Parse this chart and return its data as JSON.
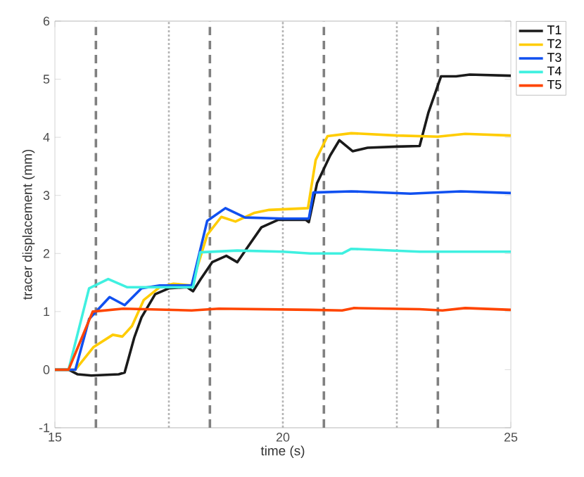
{
  "chart_data": {
    "type": "line",
    "xlabel": "time (s)",
    "ylabel": "tracer displacement (mm)",
    "xlim": [
      15,
      25
    ],
    "ylim": [
      -1,
      6
    ],
    "xticks": [
      15,
      20,
      25
    ],
    "yticks": [
      -1,
      0,
      1,
      2,
      3,
      4,
      5,
      6
    ],
    "grid": false,
    "legend": "top right",
    "marker": "none",
    "line_style": "solid",
    "ref_lines": [
      {
        "axis": "x",
        "value": 15.9,
        "color": "#808080",
        "line_style": "dashed"
      },
      {
        "axis": "x",
        "value": 17.5,
        "color": "#b4b4b4",
        "line_style": "dotted"
      },
      {
        "axis": "x",
        "value": 18.4,
        "color": "#808080",
        "line_style": "dashed"
      },
      {
        "axis": "x",
        "value": 20,
        "color": "#b4b4b4",
        "line_style": "dotted"
      },
      {
        "axis": "x",
        "value": 20.9,
        "color": "#808080",
        "line_style": "dashed"
      },
      {
        "axis": "x",
        "value": 22.5,
        "color": "#b4b4b4",
        "line_style": "dotted"
      },
      {
        "axis": "x",
        "value": 23.4,
        "color": "#808080",
        "line_style": "dashed"
      }
    ],
    "series": [
      {
        "name": "T1",
        "color": "#1a1a1a",
        "x": [
          15,
          15.3,
          15.5,
          15.8,
          16.4,
          16.53,
          16.74,
          16.9,
          17.2,
          17.5,
          17.9,
          18.03,
          18.19,
          18.45,
          18.76,
          19.0,
          19.22,
          19.53,
          19.9,
          20.5,
          20.57,
          20.75,
          21.04,
          21.24,
          21.53,
          21.86,
          22.5,
          23.0,
          23.19,
          23.47,
          23.8,
          24.1,
          25
        ],
        "values": [
          0,
          0,
          -0.08,
          -0.1,
          -0.08,
          -0.05,
          0.55,
          0.9,
          1.3,
          1.4,
          1.42,
          1.35,
          1.55,
          1.85,
          1.96,
          1.85,
          2.1,
          2.45,
          2.58,
          2.58,
          2.54,
          3.21,
          3.69,
          3.95,
          3.76,
          3.82,
          3.84,
          3.85,
          4.42,
          5.05,
          5.05,
          5.08,
          5.06
        ]
      },
      {
        "name": "T2",
        "color": "#ffcc00",
        "x": [
          15,
          15.45,
          15.85,
          16.27,
          16.48,
          16.69,
          16.95,
          17.3,
          17.6,
          18.0,
          18.34,
          18.65,
          18.96,
          19.38,
          19.7,
          20.55,
          20.72,
          20.98,
          21.5,
          22.5,
          23.4,
          24.0,
          25
        ],
        "values": [
          0,
          0,
          0.39,
          0.6,
          0.57,
          0.75,
          1.2,
          1.42,
          1.48,
          1.45,
          2.32,
          2.63,
          2.55,
          2.7,
          2.75,
          2.78,
          3.61,
          4.02,
          4.07,
          4.03,
          4.01,
          4.06,
          4.03
        ]
      },
      {
        "name": "T3",
        "color": "#1050f0",
        "x": [
          15,
          15.45,
          15.75,
          16.2,
          16.53,
          16.9,
          17.3,
          18.0,
          18.34,
          18.74,
          19.17,
          20.0,
          20.57,
          20.67,
          21.5,
          22.8,
          23.9,
          25
        ],
        "values": [
          0,
          0,
          0.87,
          1.25,
          1.11,
          1.4,
          1.45,
          1.45,
          2.56,
          2.78,
          2.62,
          2.6,
          2.6,
          3.05,
          3.07,
          3.03,
          3.07,
          3.04
        ]
      },
      {
        "name": "T4",
        "color": "#3ff0e0",
        "x": [
          15,
          15.3,
          15.75,
          16.17,
          16.58,
          18.03,
          18.19,
          19.0,
          20.0,
          20.6,
          21.3,
          21.5,
          23.0,
          25
        ],
        "values": [
          0,
          0,
          1.4,
          1.56,
          1.42,
          1.42,
          2.02,
          2.05,
          2.03,
          2.0,
          2.0,
          2.08,
          2.03,
          2.03
        ]
      },
      {
        "name": "T5",
        "color": "#ff4500",
        "x": [
          15,
          15.3,
          15.83,
          16.5,
          18.0,
          18.6,
          20.6,
          21.3,
          21.55,
          23.0,
          23.5,
          24.0,
          25
        ],
        "values": [
          0,
          0,
          1.0,
          1.05,
          1.02,
          1.05,
          1.03,
          1.02,
          1.06,
          1.04,
          1.02,
          1.06,
          1.03
        ]
      }
    ]
  }
}
